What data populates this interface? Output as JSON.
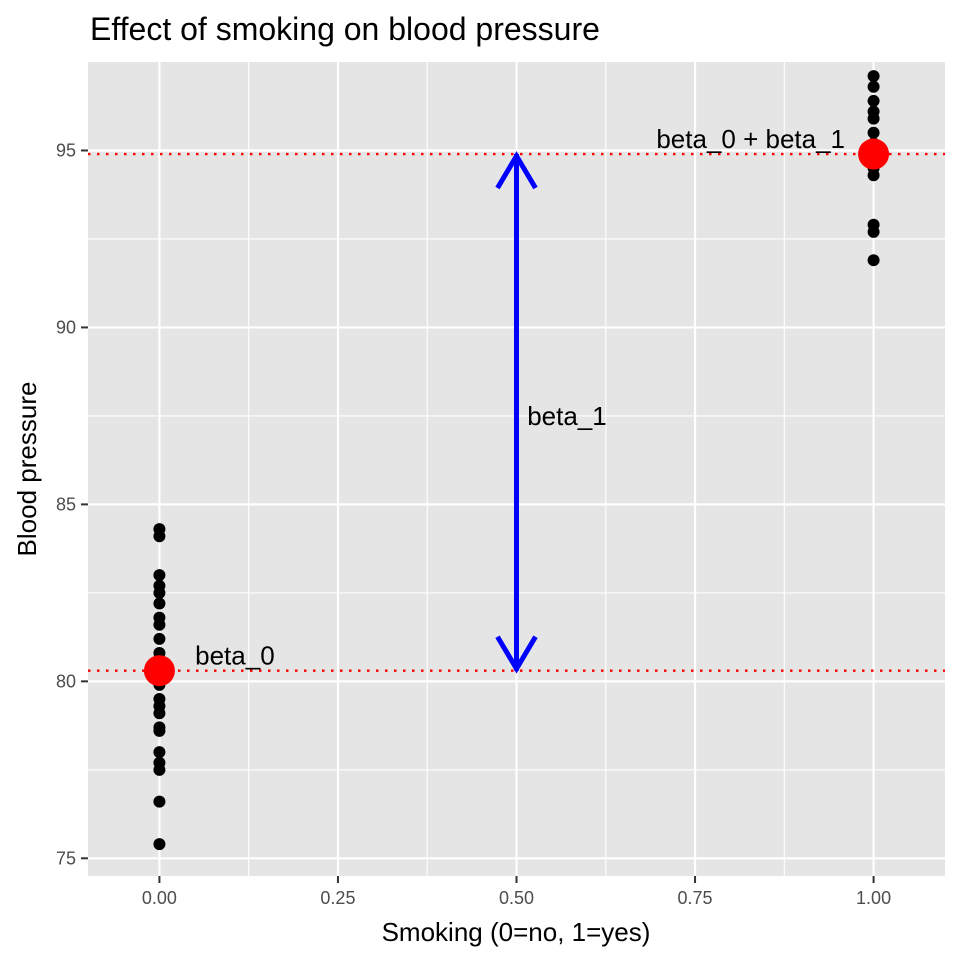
{
  "chart_data": {
    "type": "scatter",
    "title": "Effect of smoking on blood pressure",
    "xlabel": "Smoking (0=no, 1=yes)",
    "ylabel": "Blood pressure",
    "xlim": [
      -0.1,
      1.1
    ],
    "ylim": [
      74.5,
      97.5
    ],
    "x_ticks": [
      0,
      0.25,
      0.5,
      0.75,
      1
    ],
    "x_tick_labels": [
      "0.00",
      "0.25",
      "0.50",
      "0.75",
      "1.00"
    ],
    "y_ticks": [
      75,
      80,
      85,
      90,
      95
    ],
    "y_tick_labels": [
      "75",
      "80",
      "85",
      "90",
      "95"
    ],
    "grid": true,
    "series": [
      {
        "kind": "observations",
        "color": "#000000",
        "points": [
          {
            "x": 0,
            "y": 75.4
          },
          {
            "x": 0,
            "y": 76.6
          },
          {
            "x": 0,
            "y": 77.5
          },
          {
            "x": 0,
            "y": 77.7
          },
          {
            "x": 0,
            "y": 78.0
          },
          {
            "x": 0,
            "y": 78.6
          },
          {
            "x": 0,
            "y": 78.7
          },
          {
            "x": 0,
            "y": 79.1
          },
          {
            "x": 0,
            "y": 79.3
          },
          {
            "x": 0,
            "y": 79.5
          },
          {
            "x": 0,
            "y": 79.9
          },
          {
            "x": 0,
            "y": 80.1
          },
          {
            "x": 0,
            "y": 80.3
          },
          {
            "x": 0,
            "y": 80.5
          },
          {
            "x": 0,
            "y": 80.8
          },
          {
            "x": 0,
            "y": 81.2
          },
          {
            "x": 0,
            "y": 81.6
          },
          {
            "x": 0,
            "y": 81.8
          },
          {
            "x": 0,
            "y": 82.2
          },
          {
            "x": 0,
            "y": 82.5
          },
          {
            "x": 0,
            "y": 82.7
          },
          {
            "x": 0,
            "y": 83.0
          },
          {
            "x": 0,
            "y": 84.1
          },
          {
            "x": 0,
            "y": 84.3
          },
          {
            "x": 1,
            "y": 91.9
          },
          {
            "x": 1,
            "y": 92.7
          },
          {
            "x": 1,
            "y": 92.9
          },
          {
            "x": 1,
            "y": 94.3
          },
          {
            "x": 1,
            "y": 94.5
          },
          {
            "x": 1,
            "y": 94.7
          },
          {
            "x": 1,
            "y": 94.9
          },
          {
            "x": 1,
            "y": 95.2
          },
          {
            "x": 1,
            "y": 95.5
          },
          {
            "x": 1,
            "y": 95.9
          },
          {
            "x": 1,
            "y": 96.1
          },
          {
            "x": 1,
            "y": 96.4
          },
          {
            "x": 1,
            "y": 96.8
          },
          {
            "x": 1,
            "y": 97.1
          }
        ]
      },
      {
        "kind": "group-means",
        "color": "#ff0000",
        "points": [
          {
            "x": 0,
            "y": 80.3
          },
          {
            "x": 1,
            "y": 94.9
          }
        ]
      }
    ],
    "reference_lines": [
      {
        "y": 80.3,
        "color": "#ff0000",
        "style": "dotted"
      },
      {
        "y": 94.9,
        "color": "#ff0000",
        "style": "dotted"
      }
    ],
    "arrow": {
      "x": 0.5,
      "y_from": 80.3,
      "y_to": 94.9,
      "color": "#0000ff",
      "heads": "both"
    },
    "annotations": [
      {
        "text": "beta_0",
        "x": 0.05,
        "y": 80.3,
        "anchor": "start"
      },
      {
        "text": "beta_0 + beta_1",
        "x": 0.96,
        "y": 94.9,
        "anchor": "end"
      },
      {
        "text": "beta_1",
        "x": 0.515,
        "y": 87.5,
        "anchor": "start"
      }
    ],
    "panel_background": "#e5e5e5",
    "grid_color": "#ffffff"
  }
}
